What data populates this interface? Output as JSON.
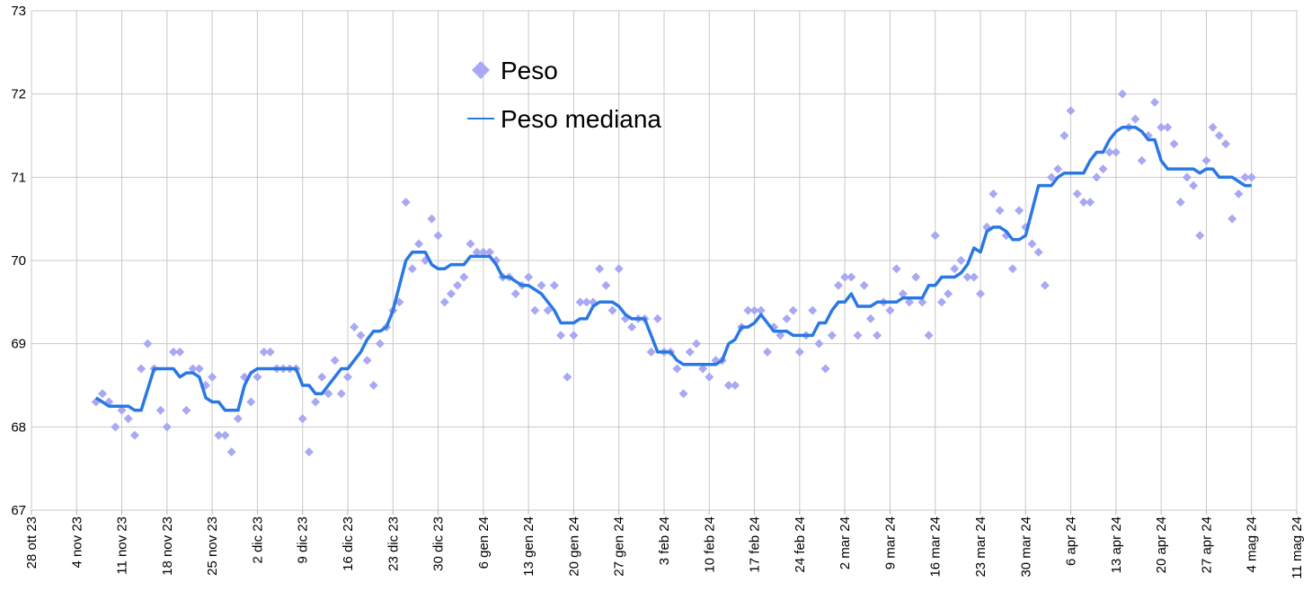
{
  "chart_data": {
    "type": "line",
    "x": [
      "2023-11-07",
      "2023-11-08",
      "2023-11-09",
      "2023-11-10",
      "2023-11-11",
      "2023-11-12",
      "2023-11-13",
      "2023-11-14",
      "2023-11-15",
      "2023-11-16",
      "2023-11-17",
      "2023-11-18",
      "2023-11-19",
      "2023-11-20",
      "2023-11-21",
      "2023-11-22",
      "2023-11-23",
      "2023-11-24",
      "2023-11-25",
      "2023-11-26",
      "2023-11-27",
      "2023-11-28",
      "2023-11-29",
      "2023-11-30",
      "2023-12-01",
      "2023-12-02",
      "2023-12-03",
      "2023-12-04",
      "2023-12-05",
      "2023-12-06",
      "2023-12-07",
      "2023-12-08",
      "2023-12-09",
      "2023-12-10",
      "2023-12-11",
      "2023-12-12",
      "2023-12-13",
      "2023-12-14",
      "2023-12-15",
      "2023-12-16",
      "2023-12-17",
      "2023-12-18",
      "2023-12-19",
      "2023-12-20",
      "2023-12-21",
      "2023-12-22",
      "2023-12-23",
      "2023-12-24",
      "2023-12-25",
      "2023-12-26",
      "2023-12-27",
      "2023-12-28",
      "2023-12-29",
      "2023-12-30",
      "2023-12-31",
      "2024-01-01",
      "2024-01-02",
      "2024-01-03",
      "2024-01-04",
      "2024-01-05",
      "2024-01-06",
      "2024-01-07",
      "2024-01-08",
      "2024-01-09",
      "2024-01-10",
      "2024-01-11",
      "2024-01-12",
      "2024-01-13",
      "2024-01-14",
      "2024-01-15",
      "2024-01-16",
      "2024-01-17",
      "2024-01-18",
      "2024-01-19",
      "2024-01-20",
      "2024-01-21",
      "2024-01-22",
      "2024-01-23",
      "2024-01-24",
      "2024-01-25",
      "2024-01-26",
      "2024-01-27",
      "2024-01-28",
      "2024-01-29",
      "2024-01-30",
      "2024-01-31",
      "2024-02-01",
      "2024-02-02",
      "2024-02-03",
      "2024-02-04",
      "2024-02-05",
      "2024-02-06",
      "2024-02-07",
      "2024-02-08",
      "2024-02-09",
      "2024-02-10",
      "2024-02-11",
      "2024-02-12",
      "2024-02-13",
      "2024-02-14",
      "2024-02-15",
      "2024-02-16",
      "2024-02-17",
      "2024-02-18",
      "2024-02-19",
      "2024-02-20",
      "2024-02-21",
      "2024-02-22",
      "2024-02-23",
      "2024-02-24",
      "2024-02-25",
      "2024-02-26",
      "2024-02-27",
      "2024-02-28",
      "2024-02-29",
      "2024-03-01",
      "2024-03-02",
      "2024-03-03",
      "2024-03-04",
      "2024-03-05",
      "2024-03-06",
      "2024-03-07",
      "2024-03-08",
      "2024-03-09",
      "2024-03-10",
      "2024-03-11",
      "2024-03-12",
      "2024-03-13",
      "2024-03-14",
      "2024-03-15",
      "2024-03-16",
      "2024-03-17",
      "2024-03-18",
      "2024-03-19",
      "2024-03-20",
      "2024-03-21",
      "2024-03-22",
      "2024-03-23",
      "2024-03-24",
      "2024-03-25",
      "2024-03-26",
      "2024-03-27",
      "2024-03-28",
      "2024-03-29",
      "2024-03-30",
      "2024-03-31",
      "2024-04-01",
      "2024-04-02",
      "2024-04-03",
      "2024-04-04",
      "2024-04-05",
      "2024-04-06",
      "2024-04-07",
      "2024-04-08",
      "2024-04-09",
      "2024-04-10",
      "2024-04-11",
      "2024-04-12",
      "2024-04-13",
      "2024-04-14",
      "2024-04-15",
      "2024-04-16",
      "2024-04-17",
      "2024-04-18",
      "2024-04-19",
      "2024-04-20",
      "2024-04-21",
      "2024-04-22",
      "2024-04-23",
      "2024-04-24",
      "2024-04-25",
      "2024-04-26",
      "2024-04-27",
      "2024-04-28",
      "2024-04-29",
      "2024-04-30",
      "2024-05-01",
      "2024-05-02",
      "2024-05-03",
      "2024-05-04"
    ],
    "series": [
      {
        "name": "Peso",
        "type": "scatter",
        "color": "#a8a8f4",
        "values": [
          68.3,
          68.4,
          68.3,
          68.0,
          68.2,
          68.1,
          67.9,
          68.7,
          69.0,
          68.7,
          68.2,
          68.0,
          68.9,
          68.9,
          68.2,
          68.7,
          68.7,
          68.5,
          68.6,
          67.9,
          67.9,
          67.7,
          68.1,
          68.6,
          68.3,
          68.6,
          68.9,
          68.9,
          68.7,
          68.7,
          68.7,
          68.7,
          68.1,
          67.7,
          68.3,
          68.6,
          68.4,
          68.8,
          68.4,
          68.6,
          69.2,
          69.1,
          68.8,
          68.5,
          69.0,
          69.2,
          69.4,
          69.5,
          70.7,
          69.9,
          70.2,
          70.0,
          70.5,
          70.3,
          69.5,
          69.6,
          69.7,
          69.8,
          70.2,
          70.1,
          70.1,
          70.1,
          70.0,
          69.8,
          69.8,
          69.6,
          69.7,
          69.8,
          69.4,
          69.7,
          69.4,
          69.7,
          69.1,
          68.6,
          69.1,
          69.5,
          69.5,
          69.5,
          69.9,
          69.7,
          69.4,
          69.9,
          69.3,
          69.2,
          69.3,
          69.3,
          68.9,
          69.3,
          68.9,
          68.9,
          68.7,
          68.4,
          68.9,
          69.0,
          68.7,
          68.6,
          68.8,
          68.8,
          68.5,
          68.5,
          69.2,
          69.4,
          69.4,
          69.4,
          68.9,
          69.2,
          69.1,
          69.3,
          69.4,
          68.9,
          69.1,
          69.4,
          69.0,
          68.7,
          69.1,
          69.7,
          69.8,
          69.8,
          69.1,
          69.7,
          69.3,
          69.1,
          69.5,
          69.4,
          69.9,
          69.6,
          69.5,
          69.8,
          69.5,
          69.1,
          70.3,
          69.5,
          69.6,
          69.9,
          70.0,
          69.8,
          69.8,
          69.6,
          70.4,
          70.8,
          70.6,
          70.3,
          69.9,
          70.6,
          70.4,
          70.2,
          70.1,
          69.7,
          71.0,
          71.1,
          71.5,
          71.8,
          70.8,
          70.7,
          70.7,
          71.0,
          71.1,
          71.3,
          71.3,
          72.0,
          71.6,
          71.7,
          71.2,
          71.5,
          71.9,
          71.6,
          71.6,
          71.4,
          70.7,
          71.0,
          70.9,
          70.3,
          71.2,
          71.6,
          71.5,
          71.4,
          70.5,
          70.8,
          71.0,
          71.0
        ]
      },
      {
        "name": "Peso mediana",
        "type": "line",
        "color": "#2a78e4",
        "values": [
          68.35,
          68.3,
          68.25,
          68.25,
          68.25,
          68.25,
          68.2,
          68.2,
          68.45,
          68.7,
          68.7,
          68.7,
          68.7,
          68.6,
          68.65,
          68.65,
          68.6,
          68.35,
          68.3,
          68.3,
          68.2,
          68.2,
          68.2,
          68.5,
          68.65,
          68.7,
          68.7,
          68.7,
          68.7,
          68.7,
          68.7,
          68.7,
          68.5,
          68.5,
          68.4,
          68.4,
          68.5,
          68.6,
          68.7,
          68.7,
          68.8,
          68.9,
          69.05,
          69.15,
          69.15,
          69.2,
          69.4,
          69.7,
          70.0,
          70.1,
          70.1,
          70.1,
          69.95,
          69.9,
          69.9,
          69.95,
          69.95,
          69.95,
          70.05,
          70.05,
          70.05,
          70.05,
          69.95,
          69.8,
          69.8,
          69.75,
          69.7,
          69.7,
          69.65,
          69.6,
          69.5,
          69.4,
          69.25,
          69.25,
          69.25,
          69.3,
          69.3,
          69.45,
          69.5,
          69.5,
          69.5,
          69.45,
          69.35,
          69.3,
          69.3,
          69.3,
          69.1,
          68.9,
          68.9,
          68.9,
          68.8,
          68.75,
          68.75,
          68.75,
          68.75,
          68.75,
          68.75,
          68.8,
          69.0,
          69.05,
          69.2,
          69.2,
          69.25,
          69.35,
          69.25,
          69.15,
          69.15,
          69.15,
          69.1,
          69.1,
          69.1,
          69.1,
          69.25,
          69.25,
          69.4,
          69.5,
          69.5,
          69.6,
          69.45,
          69.45,
          69.45,
          69.5,
          69.5,
          69.5,
          69.5,
          69.55,
          69.55,
          69.55,
          69.55,
          69.7,
          69.7,
          69.8,
          69.8,
          69.8,
          69.85,
          69.95,
          70.15,
          70.1,
          70.35,
          70.4,
          70.4,
          70.35,
          70.25,
          70.25,
          70.3,
          70.6,
          70.9,
          70.9,
          70.9,
          71.0,
          71.05,
          71.05,
          71.05,
          71.05,
          71.2,
          71.3,
          71.3,
          71.45,
          71.55,
          71.6,
          71.6,
          71.6,
          71.55,
          71.45,
          71.45,
          71.2,
          71.1,
          71.1,
          71.1,
          71.1,
          71.1,
          71.05,
          71.1,
          71.1,
          71.0,
          71.0,
          71.0,
          70.95,
          70.9,
          70.9
        ]
      }
    ],
    "xlim": [
      "2023-10-28",
      "2024-05-11"
    ],
    "xticks": [
      {
        "value": "2023-10-28",
        "label": "28 ott 23"
      },
      {
        "value": "2023-11-04",
        "label": "4 nov 23"
      },
      {
        "value": "2023-11-11",
        "label": "11 nov 23"
      },
      {
        "value": "2023-11-18",
        "label": "18 nov 23"
      },
      {
        "value": "2023-11-25",
        "label": "25 nov 23"
      },
      {
        "value": "2023-12-02",
        "label": "2 dic 23"
      },
      {
        "value": "2023-12-09",
        "label": "9 dic 23"
      },
      {
        "value": "2023-12-16",
        "label": "16 dic 23"
      },
      {
        "value": "2023-12-23",
        "label": "23 dic 23"
      },
      {
        "value": "2023-12-30",
        "label": "30 dic 23"
      },
      {
        "value": "2024-01-06",
        "label": "6 gen 24"
      },
      {
        "value": "2024-01-13",
        "label": "13 gen 24"
      },
      {
        "value": "2024-01-20",
        "label": "20 gen 24"
      },
      {
        "value": "2024-01-27",
        "label": "27 gen 24"
      },
      {
        "value": "2024-02-03",
        "label": "3 feb 24"
      },
      {
        "value": "2024-02-10",
        "label": "10 feb 24"
      },
      {
        "value": "2024-02-17",
        "label": "17 feb 24"
      },
      {
        "value": "2024-02-24",
        "label": "24 feb 24"
      },
      {
        "value": "2024-03-02",
        "label": "2 mar 24"
      },
      {
        "value": "2024-03-09",
        "label": "9 mar 24"
      },
      {
        "value": "2024-03-16",
        "label": "16 mar 24"
      },
      {
        "value": "2024-03-23",
        "label": "23 mar 24"
      },
      {
        "value": "2024-03-30",
        "label": "30 mar 24"
      },
      {
        "value": "2024-04-06",
        "label": "6 apr 24"
      },
      {
        "value": "2024-04-13",
        "label": "13 apr 24"
      },
      {
        "value": "2024-04-20",
        "label": "20 apr 24"
      },
      {
        "value": "2024-04-27",
        "label": "27 apr 24"
      },
      {
        "value": "2024-05-04",
        "label": "4 mag 24"
      },
      {
        "value": "2024-05-11",
        "label": "11 mag 24"
      }
    ],
    "ylim": [
      67,
      73
    ],
    "yticks": [
      67,
      68,
      69,
      70,
      71,
      72,
      73
    ],
    "grid": true
  }
}
